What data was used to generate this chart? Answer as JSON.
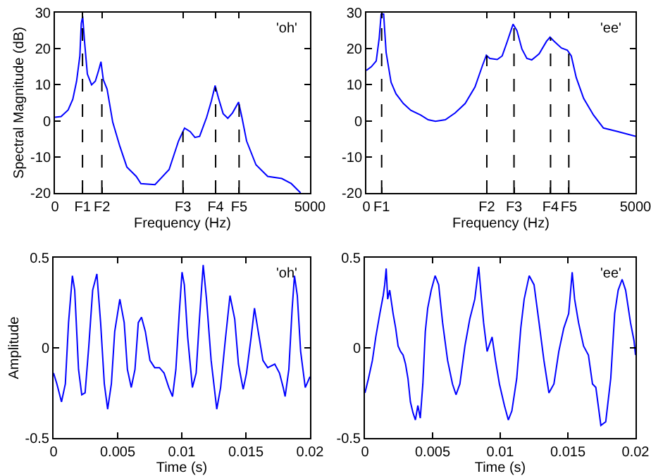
{
  "chart_data": [
    {
      "type": "line",
      "xlabel": "Frequency (Hz)",
      "ylabel": "Spectral Magnitude (dB)",
      "annotations": [
        "'oh'"
      ],
      "color": "#0000ff",
      "x": [
        0,
        120,
        258,
        350,
        424,
        488,
        516,
        543,
        580,
        635,
        718,
        792,
        856,
        902,
        948,
        1022,
        1133,
        1271,
        1409,
        1593,
        1685,
        1961,
        2238,
        2422,
        2541,
        2652,
        2744,
        2836,
        2974,
        3066,
        3140,
        3204,
        3297,
        3389,
        3481,
        3600,
        3665,
        3757,
        3941,
        4171,
        4447,
        4632,
        4816
      ],
      "values": [
        1,
        1.2,
        3,
        6,
        11,
        18,
        27,
        29,
        22,
        13,
        10,
        11,
        14,
        16.4,
        11.4,
        8.8,
        -0.4,
        -7,
        -12.8,
        -15.4,
        -17.4,
        -17.7,
        -13.5,
        -5.6,
        -2,
        -3,
        -4.6,
        -4.3,
        1,
        5.5,
        9.8,
        6.4,
        2,
        0.7,
        2.2,
        5.2,
        1,
        -5.6,
        -12.2,
        -15.4,
        -16,
        -17.4,
        -20
      ],
      "xlim": [
        0,
        5000
      ],
      "ylim": [
        -20,
        30
      ],
      "xticks": [
        0,
        {
          "value": 540,
          "label": "F1"
        },
        {
          "value": 920,
          "label": "F2"
        },
        {
          "value": 2510,
          "label": "F3"
        },
        {
          "value": 3150,
          "label": "F4"
        },
        {
          "value": 3610,
          "label": "F5"
        },
        5000
      ],
      "yticks": [
        -20,
        -10,
        0,
        10,
        20,
        30
      ],
      "ref_lines": [
        {
          "axis": "x",
          "value": 540,
          "color": "#000000",
          "line_style": "dashed"
        },
        {
          "axis": "x",
          "value": 920,
          "color": "#000000",
          "line_style": "dashed"
        },
        {
          "axis": "x",
          "value": 2510,
          "color": "#000000",
          "line_style": "dashed"
        },
        {
          "axis": "x",
          "value": 3150,
          "color": "#000000",
          "line_style": "dashed"
        },
        {
          "axis": "x",
          "value": 3610,
          "color": "#000000",
          "line_style": "dashed"
        }
      ]
    },
    {
      "type": "line",
      "xlabel": "Frequency (Hz)",
      "annotations": [
        "'ee'"
      ],
      "color": "#0000ff",
      "x": [
        0,
        92,
        183,
        239,
        275,
        321,
        367,
        459,
        550,
        688,
        826,
        1009,
        1147,
        1284,
        1468,
        1651,
        1835,
        2018,
        2156,
        2229,
        2294,
        2431,
        2523,
        2615,
        2725,
        2798,
        2890,
        2982,
        3073,
        3211,
        3349,
        3413,
        3486,
        3624,
        3734,
        3807,
        3899,
        4037,
        4220,
        4404,
        4679,
        5000
      ],
      "values": [
        14,
        15,
        16.6,
        23,
        29.6,
        29.6,
        19,
        10.7,
        7.5,
        4.8,
        2.9,
        1.6,
        0.3,
        -0.1,
        0.3,
        2.2,
        4.8,
        9.4,
        15.3,
        18.2,
        17.3,
        17,
        18,
        21.9,
        26.8,
        25,
        19.9,
        17.3,
        16.9,
        18.6,
        22.1,
        23.2,
        22.1,
        20.2,
        19.6,
        18,
        12,
        6.2,
        1.6,
        -2,
        -3,
        -4.3
      ],
      "xlim": [
        0,
        5000
      ],
      "ylim": [
        -20,
        30
      ],
      "xticks": [
        0,
        {
          "value": 284,
          "label": "F1"
        },
        {
          "value": 2238,
          "label": "F2"
        },
        {
          "value": 2743,
          "label": "F3"
        },
        {
          "value": 3422,
          "label": "F4"
        },
        {
          "value": 3761,
          "label": "F5"
        },
        5000
      ],
      "yticks": [
        -20,
        -10,
        0,
        10,
        20,
        30
      ],
      "ref_lines": [
        {
          "axis": "x",
          "value": 284,
          "color": "#000000",
          "line_style": "dashed"
        },
        {
          "axis": "x",
          "value": 2238,
          "color": "#000000",
          "line_style": "dashed"
        },
        {
          "axis": "x",
          "value": 2743,
          "color": "#000000",
          "line_style": "dashed"
        },
        {
          "axis": "x",
          "value": 3422,
          "color": "#000000",
          "line_style": "dashed"
        },
        {
          "axis": "x",
          "value": 3761,
          "color": "#000000",
          "line_style": "dashed"
        }
      ]
    },
    {
      "type": "line",
      "xlabel": "Time (s)",
      "ylabel": "Amplitude",
      "annotations": [
        "'oh'"
      ],
      "color": "#0000ff",
      "x": [
        0,
        0.00026,
        0.00062,
        0.00092,
        0.00117,
        0.00147,
        0.00165,
        0.00195,
        0.0022,
        0.00246,
        0.00275,
        0.00305,
        0.00338,
        0.00367,
        0.00396,
        0.00422,
        0.00451,
        0.00477,
        0.00517,
        0.00551,
        0.00576,
        0.00606,
        0.00635,
        0.00661,
        0.00686,
        0.00716,
        0.00752,
        0.00789,
        0.00826,
        0.00862,
        0.00899,
        0.00928,
        0.00954,
        0.0098,
        0.01002,
        0.0102,
        0.01046,
        0.01083,
        0.01112,
        0.01138,
        0.01167,
        0.01193,
        0.01229,
        0.01273,
        0.01303,
        0.01339,
        0.01376,
        0.01413,
        0.01442,
        0.01479,
        0.01505,
        0.01541,
        0.01567,
        0.01596,
        0.01633,
        0.0167,
        0.01725,
        0.01762,
        0.01791,
        0.01806,
        0.01835,
        0.01861,
        0.01879,
        0.01901,
        0.01927,
        0.01963,
        0.02
      ],
      "values": [
        -0.14,
        -0.2,
        -0.3,
        -0.2,
        0.14,
        0.4,
        0.32,
        -0.12,
        -0.26,
        -0.25,
        0.01,
        0.32,
        0.41,
        0.14,
        -0.2,
        -0.34,
        -0.2,
        0.09,
        0.27,
        0.14,
        -0.12,
        -0.22,
        -0.12,
        0.14,
        0.17,
        0.09,
        -0.07,
        -0.11,
        -0.11,
        -0.14,
        -0.22,
        -0.27,
        -0.12,
        0.19,
        0.42,
        0.35,
        0.06,
        -0.22,
        -0.14,
        0.16,
        0.46,
        0.27,
        -0.07,
        -0.34,
        -0.22,
        0.04,
        0.29,
        0.16,
        -0.09,
        -0.23,
        -0.14,
        0.06,
        0.22,
        0.09,
        -0.07,
        -0.11,
        -0.09,
        -0.14,
        -0.22,
        -0.27,
        -0.12,
        0.22,
        0.4,
        0.29,
        -0.02,
        -0.22,
        -0.16
      ],
      "xlim": [
        0,
        0.02
      ],
      "ylim": [
        -0.5,
        0.5
      ],
      "xticks": [
        0,
        0.005,
        0.01,
        0.015,
        0.02
      ],
      "yticks": [
        -0.5,
        0,
        0.5
      ]
    },
    {
      "type": "line",
      "xlabel": "Time (s)",
      "annotations": [
        "'ee'"
      ],
      "color": "#0000ff",
      "x": [
        0,
        0.00026,
        0.00055,
        0.0008,
        0.0011,
        0.00135,
        0.00146,
        0.00157,
        0.00168,
        0.00183,
        0.00208,
        0.00227,
        0.00245,
        0.00263,
        0.00282,
        0.003,
        0.00318,
        0.00336,
        0.00355,
        0.00373,
        0.00391,
        0.00409,
        0.00428,
        0.00446,
        0.00464,
        0.0049,
        0.00519,
        0.00545,
        0.00574,
        0.00611,
        0.00647,
        0.00673,
        0.00702,
        0.00739,
        0.00775,
        0.00812,
        0.00841,
        0.00859,
        0.00877,
        0.00903,
        0.0094,
        0.00965,
        0.00994,
        0.01031,
        0.0106,
        0.01086,
        0.01122,
        0.01152,
        0.01177,
        0.01214,
        0.0125,
        0.01287,
        0.01323,
        0.0136,
        0.01397,
        0.01433,
        0.0147,
        0.01506,
        0.01532,
        0.0155,
        0.01579,
        0.01616,
        0.01652,
        0.01682,
        0.01707,
        0.01744,
        0.0178,
        0.01817,
        0.01846,
        0.01872,
        0.01901,
        0.01927,
        0.01963,
        0.01989,
        0.02
      ],
      "values": [
        -0.25,
        -0.17,
        -0.07,
        0.06,
        0.19,
        0.29,
        0.35,
        0.44,
        0.27,
        0.32,
        0.19,
        0.11,
        0.01,
        -0.02,
        -0.04,
        -0.09,
        -0.17,
        -0.3,
        -0.36,
        -0.4,
        -0.32,
        -0.39,
        -0.2,
        0.09,
        0.22,
        0.32,
        0.4,
        0.35,
        0.14,
        -0.07,
        -0.2,
        -0.26,
        -0.2,
        0.01,
        0.16,
        0.27,
        0.45,
        0.29,
        0.14,
        -0.02,
        0.06,
        -0.07,
        -0.2,
        -0.32,
        -0.4,
        -0.35,
        -0.17,
        0.11,
        0.27,
        0.4,
        0.35,
        0.14,
        -0.07,
        -0.25,
        -0.2,
        -0.02,
        0.11,
        0.19,
        0.42,
        0.27,
        0.14,
        0.01,
        -0.04,
        -0.2,
        -0.22,
        -0.43,
        -0.41,
        -0.17,
        0.19,
        0.32,
        0.38,
        0.32,
        0.14,
        0.04,
        -0.04
      ],
      "xlim": [
        0,
        0.02
      ],
      "ylim": [
        -0.5,
        0.5
      ],
      "xticks": [
        0,
        0.005,
        0.01,
        0.015,
        0.02
      ],
      "yticks": [
        -0.5,
        0,
        0.5
      ]
    }
  ]
}
